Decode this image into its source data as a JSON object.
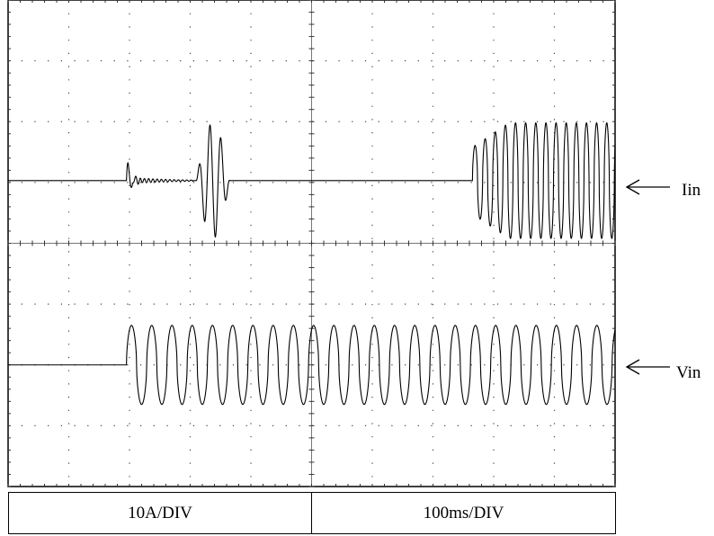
{
  "chart_data": {
    "type": "line",
    "title": "",
    "grid": true,
    "divisions": {
      "x": 10,
      "y": 8
    },
    "time_scale_label": "100ms/DIV",
    "current_scale_label": "10A/DIV",
    "x_unit": "ms",
    "xlim": [
      0,
      1000
    ],
    "series": [
      {
        "name": "Iin",
        "baseline_div": 5.03,
        "events": [
          {
            "type": "step-transient",
            "t_ms": 195,
            "peak_div": 0.45
          },
          {
            "type": "oscillation-burst",
            "t_start_ms": 310,
            "t_end_ms": 365,
            "peak_div": 0.95
          },
          {
            "type": "sinusoid",
            "t_start_ms": 765,
            "t_end_ms": 1000,
            "amplitude_div_start": 0.55,
            "amplitude_div_end": 0.95
          }
        ]
      },
      {
        "name": "Vin",
        "baseline_div": 2.0,
        "events": [
          {
            "type": "sinusoid",
            "t_start_ms": 195,
            "t_end_ms": 1000,
            "amplitude_div": 0.65,
            "cycles_per_div": 3
          }
        ]
      }
    ]
  },
  "footer": {
    "current_scale": "10A/DIV",
    "time_scale": "100ms/DIV"
  },
  "labels": {
    "iin": "Iin",
    "vin": "Vin"
  }
}
